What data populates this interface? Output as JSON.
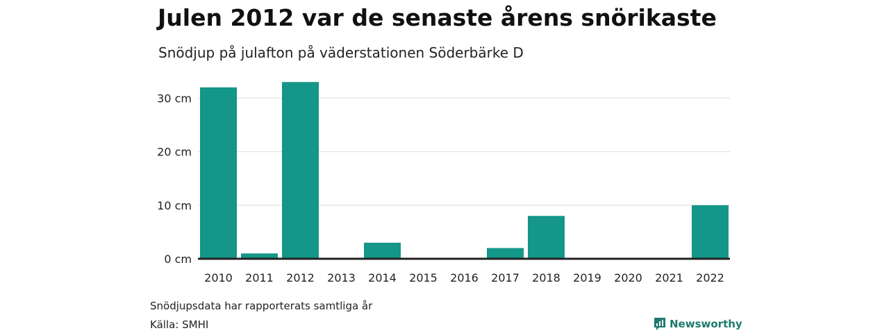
{
  "header": {
    "title": "Julen 2012 var de senaste årens snörikaste",
    "subtitle": "Snödjup på julafton på väderstationen Söderbärke D"
  },
  "footer": {
    "note": "Snödjupsdata har rapporterats samtliga år",
    "source": "Källa: SMHI",
    "brand": "Newsworthy"
  },
  "colors": {
    "bar": "#149688",
    "grid": "#dddddd",
    "baseline": "#222222",
    "brand": "#1e7a6e"
  },
  "chart_data": {
    "type": "bar",
    "categories": [
      "2010",
      "2011",
      "2012",
      "2013",
      "2014",
      "2015",
      "2016",
      "2017",
      "2018",
      "2019",
      "2020",
      "2021",
      "2022"
    ],
    "values": [
      32,
      1,
      33,
      0,
      3,
      0,
      0,
      2,
      8,
      0,
      0,
      0,
      10
    ],
    "unit": "cm",
    "yticks": [
      0,
      10,
      20,
      30
    ],
    "ytick_labels": [
      "0 cm",
      "10 cm",
      "20 cm",
      "30 cm"
    ],
    "ylim": [
      0,
      33
    ],
    "grid": true
  }
}
